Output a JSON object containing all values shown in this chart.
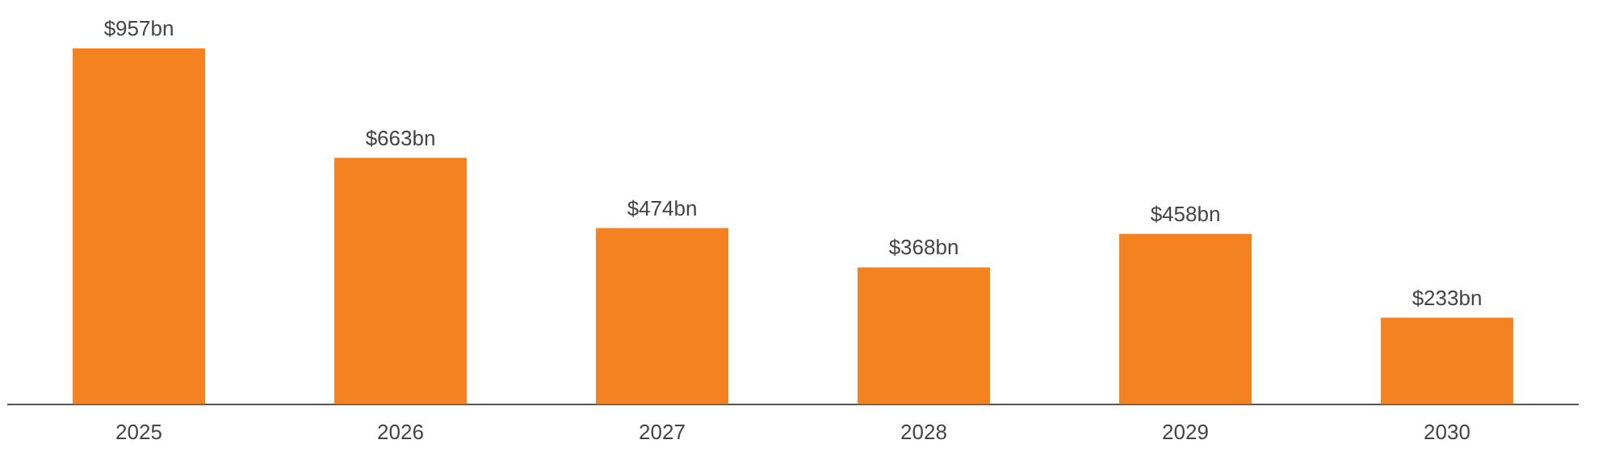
{
  "chart_data": {
    "type": "bar",
    "categories": [
      "2025",
      "2026",
      "2027",
      "2028",
      "2029",
      "2030"
    ],
    "values": [
      957,
      663,
      474,
      368,
      458,
      233
    ],
    "value_labels": [
      "$957bn",
      "$663bn",
      "$474bn",
      "$368bn",
      "$458bn",
      "$233bn"
    ],
    "color": "#f58220",
    "grid": false,
    "legend": false
  }
}
